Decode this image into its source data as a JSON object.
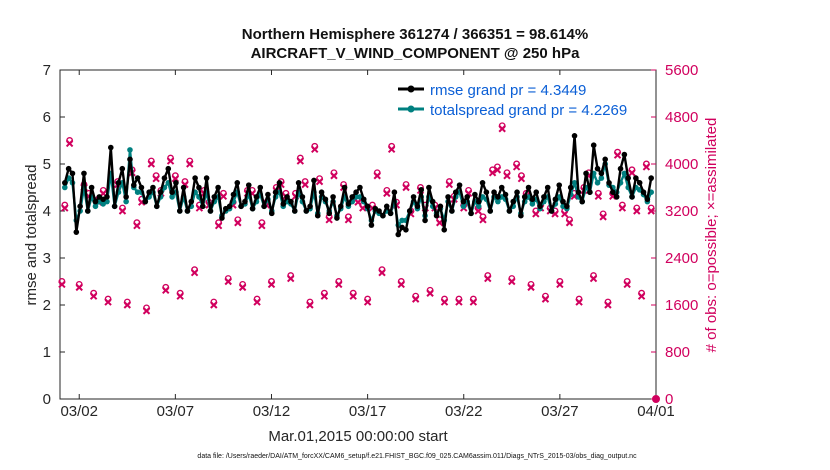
{
  "title_line1": "Northern Hemisphere 361274 / 366351 = 98.614%",
  "title_line2": "AIRCRAFT_V_WIND_COMPONENT @ 250 hPa",
  "footer": "data file: /Users/raeder/DAI/ATM_forcXX/CAM6_setup/f.e21.FHIST_BGC.f09_025.CAM6assim.011/Diags_NTrS_2015-03/obs_diag_output.nc",
  "colors": {
    "rmse": "#000000",
    "spread": "#008080",
    "obs": "#d1005e",
    "legend_text": "#0b5fd6"
  },
  "chart_data": {
    "type": "line",
    "xlabel": "Mar.01,2015 00:00:00 start",
    "ylabel_left": "rmse and totalspread",
    "ylabel_right": "# of obs: o=possible; ×=assimilated",
    "xlim": [
      0,
      31
    ],
    "ylim_left": [
      0,
      7
    ],
    "ylim_right": [
      0,
      5600
    ],
    "x_ticks": [
      {
        "value": 1,
        "label": "03/02"
      },
      {
        "value": 6,
        "label": "03/07"
      },
      {
        "value": 11,
        "label": "03/12"
      },
      {
        "value": 16,
        "label": "03/17"
      },
      {
        "value": 21,
        "label": "03/22"
      },
      {
        "value": 26,
        "label": "03/27"
      },
      {
        "value": 31,
        "label": "04/01"
      }
    ],
    "y_left_ticks": [
      0,
      1,
      2,
      3,
      4,
      5,
      6,
      7
    ],
    "y_right_ticks": [
      0,
      800,
      1600,
      2400,
      3200,
      4000,
      4800,
      5600
    ],
    "series": [
      {
        "name": "rmse",
        "legend": "rmse grand pr = 4.3449",
        "color": "#000000",
        "values": [
          4.6,
          4.9,
          4.8,
          3.55,
          4.1,
          4.8,
          4.0,
          4.5,
          4.2,
          4.3,
          4.25,
          4.3,
          5.35,
          4.1,
          4.6,
          4.9,
          4.3,
          5.1,
          4.55,
          4.7,
          4.5,
          4.2,
          4.4,
          4.5,
          4.1,
          4.4,
          4.7,
          4.9,
          4.4,
          4.6,
          4.0,
          4.5,
          4.0,
          4.2,
          4.7,
          4.5,
          4.1,
          4.7,
          4.0,
          4.3,
          4.5,
          3.85,
          4.05,
          4.1,
          4.35,
          4.6,
          4.1,
          4.2,
          4.55,
          4.05,
          4.3,
          4.5,
          4.1,
          4.35,
          3.95,
          4.4,
          4.6,
          4.15,
          4.3,
          4.2,
          4.0,
          4.6,
          4.3,
          4.0,
          4.1,
          4.65,
          3.9,
          4.4,
          4.25,
          3.95,
          4.3,
          3.85,
          4.1,
          4.5,
          4.15,
          4.3,
          4.4,
          4.5,
          4.25,
          4.1,
          3.7,
          4.05,
          4.0,
          3.9,
          4.1,
          3.95,
          4.4,
          3.5,
          3.65,
          3.6,
          4.0,
          4.3,
          4.1,
          4.45,
          3.8,
          4.5,
          4.2,
          3.9,
          4.1,
          3.6,
          4.3,
          4.0,
          4.4,
          4.55,
          4.2,
          4.3,
          3.95,
          4.35,
          4.2,
          4.6,
          4.4,
          4.0,
          4.4,
          4.3,
          4.5,
          4.35,
          4.0,
          4.2,
          4.4,
          3.9,
          4.3,
          4.5,
          4.25,
          4.4,
          4.1,
          4.3,
          4.5,
          4.0,
          4.25,
          4.55,
          4.2,
          4.1,
          4.5,
          5.6,
          4.4,
          4.2,
          4.8,
          4.4,
          5.4,
          4.9,
          4.8,
          5.1,
          4.6,
          4.4,
          4.3,
          4.9,
          5.2,
          4.7,
          4.3,
          4.7,
          4.6,
          4.4,
          4.25,
          4.7
        ],
        "note": "one value per 6-hour bin"
      },
      {
        "name": "totalspread",
        "legend": "totalspread grand pr = 4.2269",
        "color": "#008080",
        "values": [
          4.5,
          4.7,
          4.6,
          3.8,
          4.0,
          4.5,
          4.0,
          4.3,
          4.1,
          4.2,
          4.15,
          4.2,
          4.8,
          4.1,
          4.4,
          4.6,
          4.2,
          5.3,
          4.5,
          4.4,
          4.4,
          4.2,
          4.3,
          4.4,
          4.1,
          4.3,
          4.5,
          4.6,
          4.3,
          4.4,
          4.0,
          4.3,
          4.0,
          4.1,
          4.4,
          4.3,
          4.1,
          4.4,
          4.0,
          4.2,
          4.3,
          3.9,
          4.0,
          4.05,
          4.2,
          4.4,
          4.1,
          4.15,
          4.35,
          4.05,
          4.2,
          4.35,
          4.1,
          4.25,
          4.0,
          4.3,
          4.4,
          4.1,
          4.2,
          4.15,
          4.0,
          4.4,
          4.2,
          4.0,
          4.05,
          4.4,
          3.95,
          4.3,
          4.2,
          4.0,
          4.2,
          3.9,
          4.05,
          4.3,
          4.1,
          4.2,
          4.3,
          4.3,
          4.2,
          4.05,
          3.8,
          4.0,
          3.95,
          3.9,
          4.0,
          3.95,
          4.2,
          3.7,
          3.8,
          3.8,
          4.0,
          4.2,
          4.05,
          4.3,
          3.9,
          4.3,
          4.1,
          3.95,
          4.05,
          3.8,
          4.2,
          4.0,
          4.3,
          4.4,
          4.1,
          4.2,
          3.95,
          4.2,
          4.1,
          4.3,
          4.25,
          4.0,
          4.3,
          4.2,
          4.3,
          4.25,
          4.0,
          4.1,
          4.3,
          3.95,
          4.2,
          4.3,
          4.15,
          4.25,
          4.05,
          4.2,
          4.3,
          4.0,
          4.15,
          4.3,
          4.1,
          4.05,
          4.35,
          4.6,
          4.3,
          4.2,
          4.5,
          4.4,
          4.8,
          4.6,
          4.7,
          5.0,
          4.55,
          4.5,
          4.4,
          4.6,
          4.8,
          4.5,
          4.3,
          4.5,
          4.45,
          4.35,
          4.2,
          4.4
        ],
        "note": "one value per 6-hour bin"
      }
    ],
    "obs_points": {
      "description": "possible (o) and assimilated (x) counts on right axis",
      "x": [
        0.1,
        0.25,
        0.5,
        1.0,
        1.25,
        1.5,
        1.75,
        2.0,
        2.25,
        2.5,
        3.0,
        3.25,
        3.5,
        3.75,
        4.0,
        4.25,
        4.5,
        4.75,
        5.0,
        5.25,
        5.5,
        5.75,
        6.0,
        6.25,
        6.5,
        6.75,
        7.0,
        7.25,
        7.5,
        7.75,
        8.0,
        8.25,
        8.5,
        8.75,
        9.0,
        9.25,
        9.5,
        9.75,
        10.0,
        10.25,
        10.5,
        10.75,
        11.0,
        11.25,
        11.5,
        11.75,
        12.0,
        12.25,
        12.5,
        12.75,
        13.0,
        13.25,
        13.5,
        13.75,
        14.0,
        14.25,
        14.5,
        14.75,
        15.0,
        15.25,
        15.5,
        15.75,
        16.0,
        16.25,
        16.5,
        16.75,
        17.0,
        17.25,
        17.5,
        17.75,
        18.0,
        18.25,
        18.5,
        18.75,
        19.0,
        19.25,
        19.5,
        19.75,
        20.0,
        20.25,
        20.5,
        20.75,
        21.0,
        21.25,
        21.5,
        21.75,
        22.0,
        22.25,
        22.5,
        22.75,
        23.0,
        23.25,
        23.5,
        23.75,
        24.0,
        24.25,
        24.5,
        24.75,
        25.0,
        25.25,
        25.5,
        25.75,
        26.0,
        26.25,
        26.5,
        26.75,
        27.0,
        27.25,
        27.5,
        27.75,
        28.0,
        28.25,
        28.5,
        28.75,
        29.0,
        29.25,
        29.5,
        29.75,
        30.0,
        30.25,
        30.5,
        30.75
      ],
      "possible": [
        2000,
        3300,
        4400,
        1950,
        3650,
        3500,
        1800,
        3400,
        3550,
        1700,
        3700,
        3250,
        1650,
        3900,
        3000,
        3400,
        1550,
        4050,
        3800,
        3550,
        1900,
        4100,
        3800,
        1800,
        3700,
        4050,
        2200,
        3300,
        3550,
        3350,
        1650,
        3000,
        3500,
        2050,
        3350,
        3050,
        1950,
        3550,
        3550,
        1700,
        3000,
        3350,
        2000,
        3600,
        3700,
        3500,
        2100,
        3500,
        4100,
        3700,
        1650,
        4300,
        3750,
        1800,
        3100,
        3850,
        2000,
        3650,
        3100,
        1800,
        3400,
        3300,
        1700,
        3300,
        3850,
        2200,
        3550,
        4300,
        3350,
        2000,
        3650,
        3200,
        1750,
        3600,
        3300,
        1850,
        3300,
        3050,
        1700,
        3700,
        3450,
        1700,
        3300,
        3550,
        1700,
        3250,
        3100,
        2100,
        3900,
        3950,
        4650,
        3850,
        2050,
        4000,
        3800,
        3500,
        1950,
        3200,
        3300,
        1750,
        3250,
        3200,
        2000,
        3200,
        3050,
        3500,
        1700,
        3600,
        3850,
        2100,
        3500,
        3150,
        1650,
        3500,
        4200,
        3300,
        2000,
        3900,
        3250,
        1800,
        4000,
        3250
      ],
      "assimilated": [
        1950,
        3250,
        4350,
        1900,
        3600,
        3450,
        1750,
        3350,
        3500,
        1650,
        3650,
        3200,
        1600,
        3850,
        2950,
        3350,
        1500,
        4000,
        3750,
        3500,
        1850,
        4050,
        3750,
        1750,
        3650,
        4000,
        2150,
        3250,
        3500,
        3300,
        1600,
        2950,
        3450,
        2000,
        3300,
        3000,
        1900,
        3500,
        3500,
        1650,
        2950,
        3300,
        1950,
        3550,
        3650,
        3450,
        2050,
        3450,
        4050,
        3650,
        1600,
        4250,
        3700,
        1750,
        3050,
        3800,
        1950,
        3600,
        3050,
        1750,
        3350,
        3250,
        1650,
        3250,
        3800,
        2150,
        3500,
        4250,
        3300,
        1950,
        3600,
        3150,
        1700,
        3550,
        3250,
        1800,
        3250,
        3000,
        1650,
        3650,
        3400,
        1650,
        3250,
        3500,
        1650,
        3200,
        3050,
        2050,
        3850,
        3900,
        4600,
        3800,
        2000,
        3950,
        3750,
        3450,
        1900,
        3150,
        3250,
        1700,
        3200,
        3150,
        1950,
        3150,
        3000,
        3450,
        1650,
        3550,
        3800,
        2050,
        3450,
        3100,
        1600,
        3450,
        4150,
        3250,
        1950,
        3850,
        3200,
        1750,
        3950,
        3200
      ]
    },
    "final_point": {
      "x": 31,
      "possible": 0,
      "assimilated": 0
    }
  }
}
